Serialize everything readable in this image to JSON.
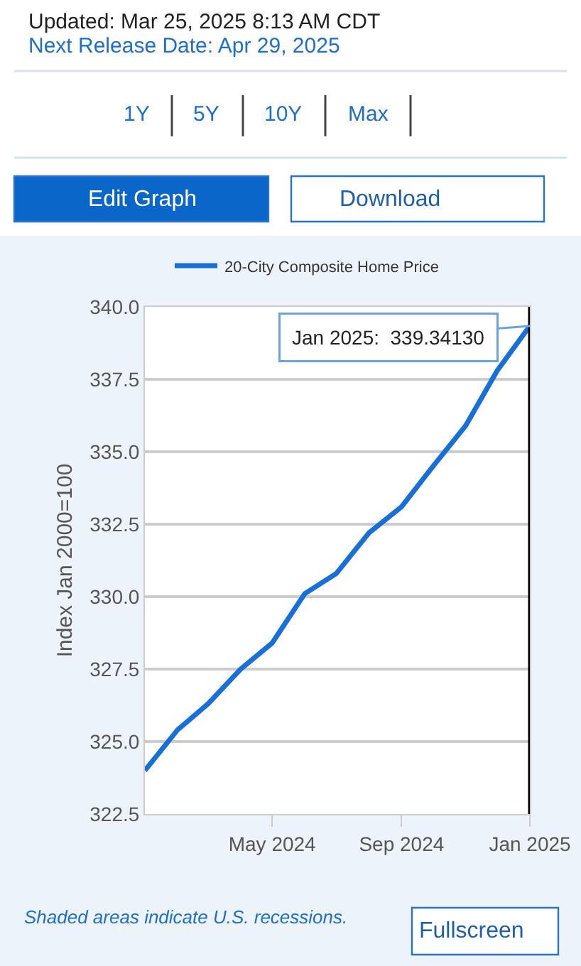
{
  "chart_data": {
    "type": "line",
    "x": [
      "2024-01",
      "2024-02",
      "2024-03",
      "2024-04",
      "2024-05",
      "2024-06",
      "2024-07",
      "2024-08",
      "2024-09",
      "2024-10",
      "2024-11",
      "2024-12",
      "2025-01"
    ],
    "series": [
      {
        "name": "20-City Composite Home Price",
        "color": "#1670d8",
        "values": [
          324.0,
          325.4,
          326.3,
          327.5,
          328.4,
          330.1,
          330.8,
          332.2,
          333.1,
          334.5,
          335.9,
          337.8,
          339.3413
        ]
      }
    ],
    "ylabel": "Index Jan 2000=100",
    "xlim": [
      "2024-01",
      "2025-01"
    ],
    "xticks": [
      {
        "value": "2024-05",
        "label": "May 2024"
      },
      {
        "value": "2024-09",
        "label": "Sep 2024"
      },
      {
        "value": "2025-01",
        "label": "Jan 2025"
      }
    ],
    "ylim": [
      322.5,
      340.0
    ],
    "yticks": [
      {
        "value": 322.5,
        "label": "322.5"
      },
      {
        "value": 325.0,
        "label": "325.0"
      },
      {
        "value": 327.5,
        "label": "327.5"
      },
      {
        "value": 330.0,
        "label": "330.0"
      },
      {
        "value": 332.5,
        "label": "332.5"
      },
      {
        "value": 335.0,
        "label": "335.0"
      },
      {
        "value": 337.5,
        "label": "337.5"
      },
      {
        "value": 340.0,
        "label": "340.0"
      }
    ],
    "grid": "y",
    "legend": "top",
    "line_style": "solid",
    "ref_lines": [
      {
        "axis": "x",
        "value": "2025-01",
        "label": null,
        "color": "#000000"
      }
    ],
    "annotations": [
      "Updated: Mar 25, 2025 8:13 AM CDT",
      "Next Release Date: Apr 29, 2025",
      "1Y",
      "5Y",
      "10Y",
      "Max",
      "Edit Graph",
      "Download",
      "Shaded areas indicate U.S. recessions.",
      "Fullscreen",
      {
        "text": "Jan 2025:  339.34130",
        "x": "2025-01",
        "y": 339.3413
      }
    ]
  }
}
